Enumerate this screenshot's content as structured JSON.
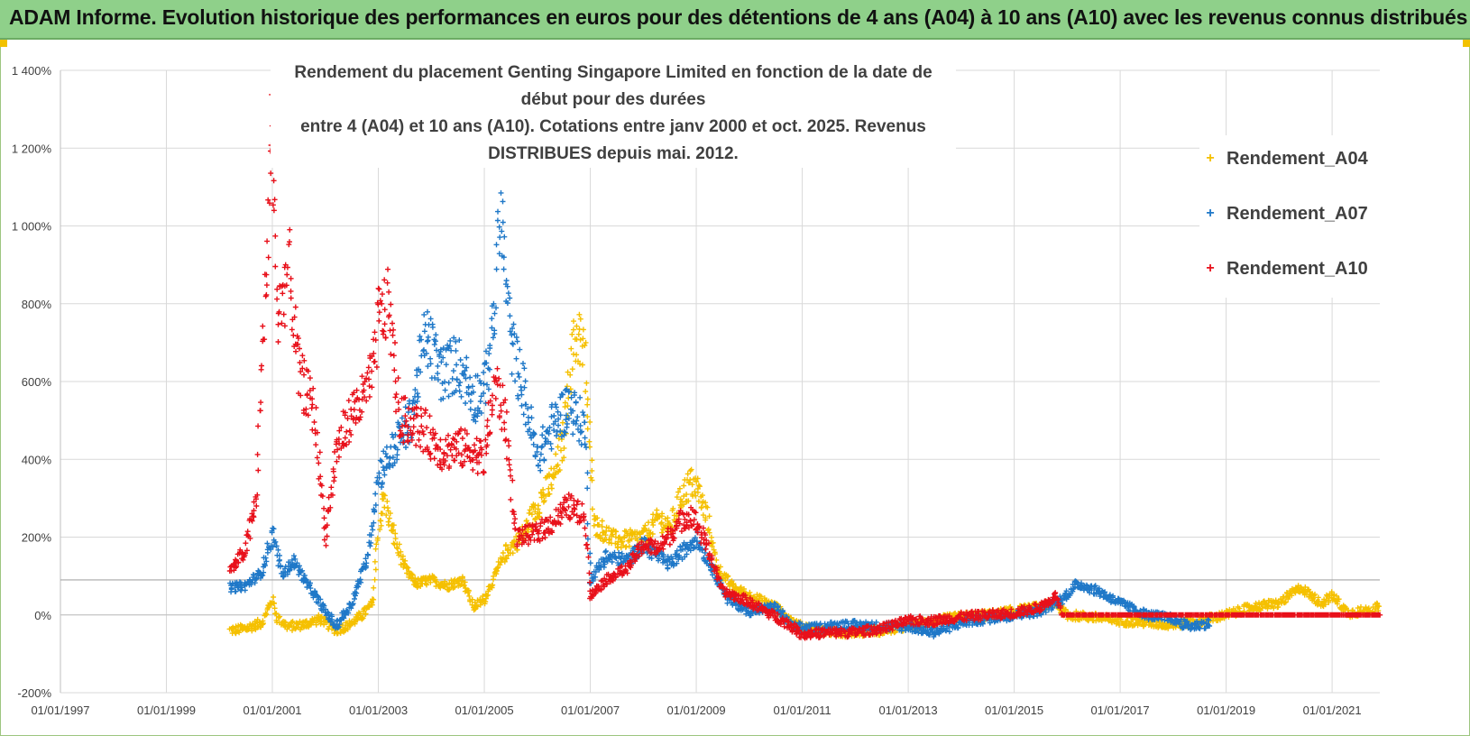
{
  "header": {
    "title": "ADAM Informe. Evolution historique des performances en euros pour des détentions de 4 ans (A04) à 10 ans (A10) avec les revenus connus distribués"
  },
  "chart_data": {
    "type": "scatter",
    "title_line1": "Rendement du placement Genting Singapore Limited en fonction de la date de début pour des durées",
    "title_line2": "entre 4 (A04) et 10 ans (A10). Cotations entre janv 2000 et oct. 2025.  Revenus DISTRIBUES depuis mai. 2012.",
    "x_tick_labels": [
      "01/01/1997",
      "01/01/1999",
      "01/01/2001",
      "01/01/2003",
      "01/01/2005",
      "01/01/2007",
      "01/01/2009",
      "01/01/2011",
      "01/01/2013",
      "01/01/2015",
      "01/01/2017",
      "01/01/2019",
      "01/01/2021"
    ],
    "x_tick_years": [
      1997,
      1999,
      2001,
      2003,
      2005,
      2007,
      2009,
      2011,
      2013,
      2015,
      2017,
      2019,
      2021
    ],
    "xlim": [
      1997,
      2021.9
    ],
    "y_tick_labels": [
      "1 400%",
      "1 200%",
      "1 000%",
      "800%",
      "600%",
      "400%",
      "200%",
      "0%",
      "-200%"
    ],
    "y_tick_values": [
      1400,
      1200,
      1000,
      800,
      600,
      400,
      200,
      0,
      -200
    ],
    "ylim": [
      -200,
      1400
    ],
    "reference_line": 90,
    "legend_position": "top-right",
    "series": [
      {
        "name": "Rendement_A04",
        "color": "#f5c000",
        "points": [
          [
            2000.2,
            -40
          ],
          [
            2000.5,
            -35
          ],
          [
            2000.8,
            -20
          ],
          [
            2001.0,
            40
          ],
          [
            2001.1,
            -10
          ],
          [
            2001.3,
            -30
          ],
          [
            2001.6,
            -25
          ],
          [
            2001.9,
            -10
          ],
          [
            2002.2,
            -40
          ],
          [
            2002.4,
            -30
          ],
          [
            2002.7,
            0
          ],
          [
            2002.9,
            30
          ],
          [
            2003.0,
            220
          ],
          [
            2003.1,
            300
          ],
          [
            2003.3,
            200
          ],
          [
            2003.5,
            120
          ],
          [
            2003.7,
            80
          ],
          [
            2004.0,
            90
          ],
          [
            2004.3,
            75
          ],
          [
            2004.6,
            90
          ],
          [
            2004.8,
            20
          ],
          [
            2005.0,
            40
          ],
          [
            2005.2,
            100
          ],
          [
            2005.4,
            160
          ],
          [
            2005.7,
            200
          ],
          [
            2006.0,
            280
          ],
          [
            2006.3,
            350
          ],
          [
            2006.5,
            450
          ],
          [
            2006.6,
            620
          ],
          [
            2006.7,
            700
          ],
          [
            2006.8,
            720
          ],
          [
            2006.9,
            650
          ],
          [
            2007.0,
            400
          ],
          [
            2007.1,
            230
          ],
          [
            2007.5,
            190
          ],
          [
            2008.0,
            200
          ],
          [
            2008.3,
            250
          ],
          [
            2008.5,
            220
          ],
          [
            2008.7,
            300
          ],
          [
            2008.9,
            340
          ],
          [
            2009.0,
            330
          ],
          [
            2009.2,
            250
          ],
          [
            2009.4,
            120
          ],
          [
            2009.7,
            70
          ],
          [
            2010.0,
            50
          ],
          [
            2010.5,
            20
          ],
          [
            2010.8,
            -20
          ],
          [
            2011.2,
            -40
          ],
          [
            2011.8,
            -45
          ],
          [
            2012.5,
            -40
          ],
          [
            2013.0,
            -30
          ],
          [
            2013.5,
            -15
          ],
          [
            2014.0,
            -5
          ],
          [
            2014.5,
            0
          ],
          [
            2015.0,
            10
          ],
          [
            2015.5,
            20
          ],
          [
            2015.8,
            30
          ],
          [
            2016.0,
            0
          ],
          [
            2016.4,
            -5
          ],
          [
            2017.0,
            -15
          ],
          [
            2017.5,
            -20
          ],
          [
            2018.0,
            -25
          ],
          [
            2018.5,
            -15
          ],
          [
            2019.0,
            0
          ],
          [
            2019.5,
            20
          ],
          [
            2020.0,
            30
          ],
          [
            2020.4,
            70
          ],
          [
            2020.8,
            30
          ],
          [
            2021.0,
            50
          ],
          [
            2021.3,
            5
          ],
          [
            2021.6,
            10
          ],
          [
            2021.9,
            20
          ]
        ]
      },
      {
        "name": "Rendement_A07",
        "color": "#1f78c8",
        "points": [
          [
            2000.2,
            70
          ],
          [
            2000.5,
            75
          ],
          [
            2000.8,
            110
          ],
          [
            2001.0,
            210
          ],
          [
            2001.2,
            100
          ],
          [
            2001.4,
            140
          ],
          [
            2001.7,
            70
          ],
          [
            2002.0,
            10
          ],
          [
            2002.2,
            -30
          ],
          [
            2002.5,
            30
          ],
          [
            2002.8,
            150
          ],
          [
            2003.0,
            360
          ],
          [
            2003.3,
            430
          ],
          [
            2003.6,
            500
          ],
          [
            2003.9,
            720
          ],
          [
            2004.2,
            620
          ],
          [
            2004.5,
            650
          ],
          [
            2004.8,
            560
          ],
          [
            2005.0,
            580
          ],
          [
            2005.2,
            780
          ],
          [
            2005.3,
            1050
          ],
          [
            2005.5,
            700
          ],
          [
            2005.7,
            600
          ],
          [
            2006.0,
            400
          ],
          [
            2006.3,
            490
          ],
          [
            2006.6,
            540
          ],
          [
            2006.9,
            480
          ],
          [
            2007.0,
            90
          ],
          [
            2007.3,
            150
          ],
          [
            2007.7,
            140
          ],
          [
            2008.0,
            180
          ],
          [
            2008.5,
            130
          ],
          [
            2008.8,
            170
          ],
          [
            2009.0,
            200
          ],
          [
            2009.3,
            120
          ],
          [
            2009.6,
            40
          ],
          [
            2010.0,
            10
          ],
          [
            2010.5,
            20
          ],
          [
            2010.8,
            -30
          ],
          [
            2011.2,
            -35
          ],
          [
            2011.8,
            -25
          ],
          [
            2012.5,
            -30
          ],
          [
            2013.0,
            -30
          ],
          [
            2013.5,
            -45
          ],
          [
            2014.0,
            -20
          ],
          [
            2014.5,
            -10
          ],
          [
            2015.0,
            0
          ],
          [
            2015.5,
            10
          ],
          [
            2015.9,
            40
          ],
          [
            2016.2,
            80
          ],
          [
            2016.6,
            60
          ],
          [
            2017.0,
            30
          ],
          [
            2017.5,
            0
          ],
          [
            2018.0,
            -10
          ],
          [
            2018.3,
            -30
          ],
          [
            2018.7,
            -20
          ]
        ]
      },
      {
        "name": "Rendement_A10",
        "color": "#e8101a",
        "points": [
          [
            2000.2,
            110
          ],
          [
            2000.5,
            170
          ],
          [
            2000.7,
            300
          ],
          [
            2000.8,
            650
          ],
          [
            2000.9,
            900
          ],
          [
            2001.0,
            1250
          ],
          [
            2001.1,
            750
          ],
          [
            2001.3,
            900
          ],
          [
            2001.5,
            620
          ],
          [
            2001.8,
            520
          ],
          [
            2002.0,
            200
          ],
          [
            2002.2,
            420
          ],
          [
            2002.5,
            520
          ],
          [
            2002.7,
            550
          ],
          [
            2002.9,
            620
          ],
          [
            2003.0,
            760
          ],
          [
            2003.2,
            800
          ],
          [
            2003.4,
            500
          ],
          [
            2003.6,
            500
          ],
          [
            2003.9,
            470
          ],
          [
            2004.2,
            420
          ],
          [
            2004.5,
            430
          ],
          [
            2004.8,
            420
          ],
          [
            2005.0,
            400
          ],
          [
            2005.2,
            600
          ],
          [
            2005.4,
            500
          ],
          [
            2005.6,
            200
          ],
          [
            2006.0,
            210
          ],
          [
            2006.3,
            240
          ],
          [
            2006.6,
            280
          ],
          [
            2006.9,
            250
          ],
          [
            2007.0,
            50
          ],
          [
            2007.3,
            90
          ],
          [
            2007.7,
            120
          ],
          [
            2008.0,
            180
          ],
          [
            2008.3,
            170
          ],
          [
            2008.7,
            240
          ],
          [
            2008.9,
            260
          ],
          [
            2009.2,
            180
          ],
          [
            2009.5,
            60
          ],
          [
            2009.9,
            40
          ],
          [
            2010.3,
            10
          ],
          [
            2010.7,
            -20
          ],
          [
            2011.0,
            -50
          ],
          [
            2011.5,
            -45
          ],
          [
            2012.0,
            -45
          ],
          [
            2012.5,
            -35
          ],
          [
            2013.0,
            -15
          ],
          [
            2013.5,
            -15
          ],
          [
            2014.0,
            -5
          ],
          [
            2014.5,
            0
          ],
          [
            2015.0,
            5
          ],
          [
            2015.5,
            20
          ],
          [
            2015.8,
            50
          ],
          [
            2015.9,
            0
          ],
          [
            2016.5,
            0
          ],
          [
            2017.5,
            0
          ],
          [
            2018.5,
            0
          ],
          [
            2019.5,
            0
          ],
          [
            2020.5,
            0
          ],
          [
            2021.5,
            0
          ],
          [
            2021.9,
            0
          ]
        ]
      }
    ]
  }
}
